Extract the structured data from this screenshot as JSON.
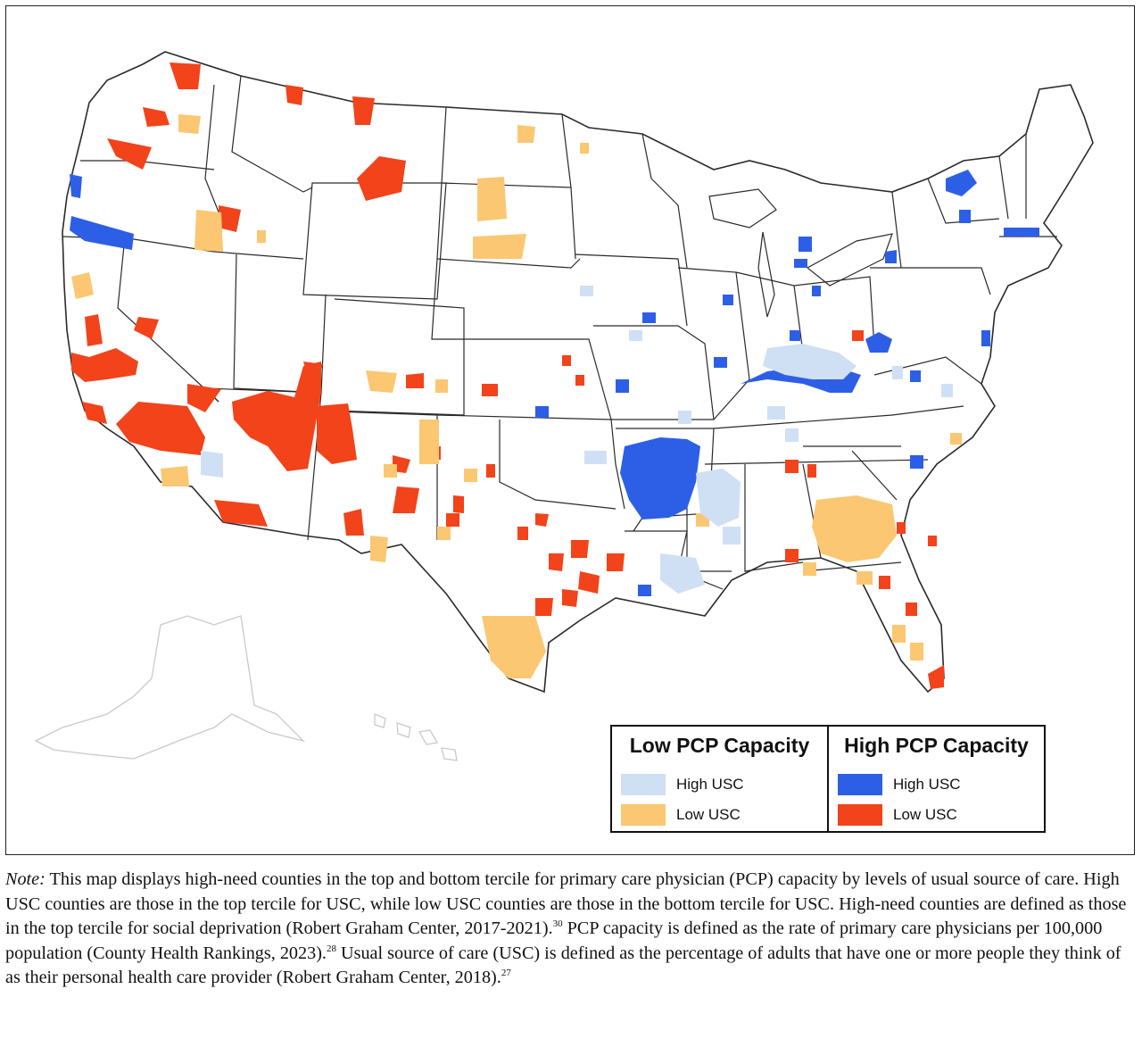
{
  "legend": {
    "groups": [
      {
        "title": "Low PCP Capacity",
        "items": [
          {
            "label": "High USC",
            "color": "#cfe0f5"
          },
          {
            "label": "Low USC",
            "color": "#fbc772"
          }
        ]
      },
      {
        "title": "High PCP Capacity",
        "items": [
          {
            "label": "High USC",
            "color": "#2d5fe6"
          },
          {
            "label": "Low USC",
            "color": "#f2431b"
          }
        ]
      }
    ]
  },
  "note": {
    "label": "Note:",
    "text1": " This map displays high-need counties in the top and bottom tercile for primary care physician (PCP) capacity by levels of usual source of care. High USC counties are those in the top tercile for USC, while low USC counties are those in the bottom tercile for USC. High-need counties are defined as those in the top tercile for social deprivation (Robert Graham Center, 2017-2021).",
    "ref1": "30",
    "text2": " PCP capacity is defined as the rate of primary care physicians per 100,000 population (County Health Rankings, 2023).",
    "ref2": "28",
    "text3": " Usual source of care (USC) is defined as the percentage of adults that have one or more people they think of as their personal health care provider (Robert Graham Center, 2018).",
    "ref3": "27"
  },
  "map_colors": {
    "low_capacity_high_usc": "#cfe0f5",
    "low_capacity_low_usc": "#fbc772",
    "high_capacity_high_usc": "#2d5fe6",
    "high_capacity_low_usc": "#f2431b",
    "state_fill": "#ffffff",
    "state_border": "#2a2a2a",
    "alaska_hawaii": "#c9c9c9"
  }
}
